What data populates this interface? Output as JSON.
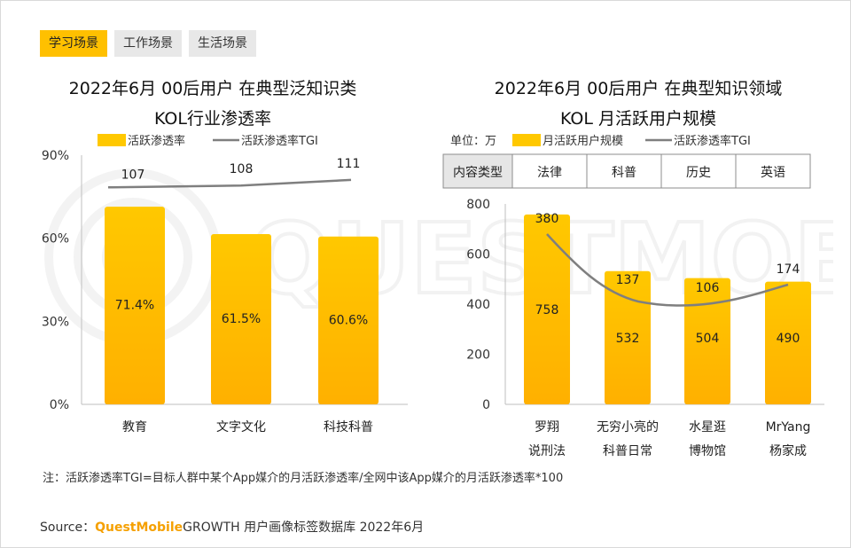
{
  "tabs": [
    {
      "label": "学习场景",
      "active": true
    },
    {
      "label": "工作场景",
      "active": false
    },
    {
      "label": "生活场景",
      "active": false
    }
  ],
  "watermark_text": "QUESTMOBILE",
  "colors": {
    "bar_top": "#ffc800",
    "bar_bottom": "#ffb000",
    "line": "#7f7f7f",
    "brand": "#f5a000"
  },
  "chart_data": [
    {
      "type": "bar",
      "title_lines": [
        "2022年6月 00后用户 在典型泛知识类",
        "KOL行业渗透率"
      ],
      "legend": {
        "bar": "活跃渗透率",
        "line": "活跃渗透率TGI"
      },
      "categories": [
        "教育",
        "文字文化",
        "科技科普"
      ],
      "values": [
        71.4,
        61.5,
        60.6
      ],
      "value_labels": [
        "71.4%",
        "61.5%",
        "60.6%"
      ],
      "tgi": [
        107,
        108,
        111
      ],
      "y_ticks": [
        "90%",
        "60%",
        "30%",
        "0%"
      ],
      "ylim": [
        0,
        90
      ],
      "unit": "%"
    },
    {
      "type": "bar",
      "title_lines": [
        "2022年6月 00后用户 在典型知识领域",
        "KOL 月活跃用户规模"
      ],
      "unit_label": "单位：万",
      "legend": {
        "bar": "月活跃用户规模",
        "line": "活跃渗透率TGI"
      },
      "header_row": [
        "内容类型",
        "法律",
        "科普",
        "历史",
        "英语"
      ],
      "categories": [
        [
          "罗翔",
          "说刑法"
        ],
        [
          "无穷小亮的",
          "科普日常"
        ],
        [
          "水星逛",
          "博物馆"
        ],
        [
          "MrYang",
          "杨家成"
        ]
      ],
      "values": [
        758,
        532,
        504,
        490
      ],
      "value_labels": [
        "758",
        "532",
        "504",
        "490"
      ],
      "tgi": [
        380,
        137,
        106,
        174
      ],
      "y_ticks": [
        "800",
        "600",
        "400",
        "200",
        "0"
      ],
      "ylim": [
        0,
        800
      ]
    }
  ],
  "note": "注：活跃渗透率TGI=目标人群中某个App媒介的月活跃渗透率/全网中该App媒介的月活跃渗透率*100",
  "source": {
    "prefix": "Source：",
    "brand": "QuestMobile",
    "rest": "GROWTH 用户画像标签数据库 2022年6月"
  }
}
